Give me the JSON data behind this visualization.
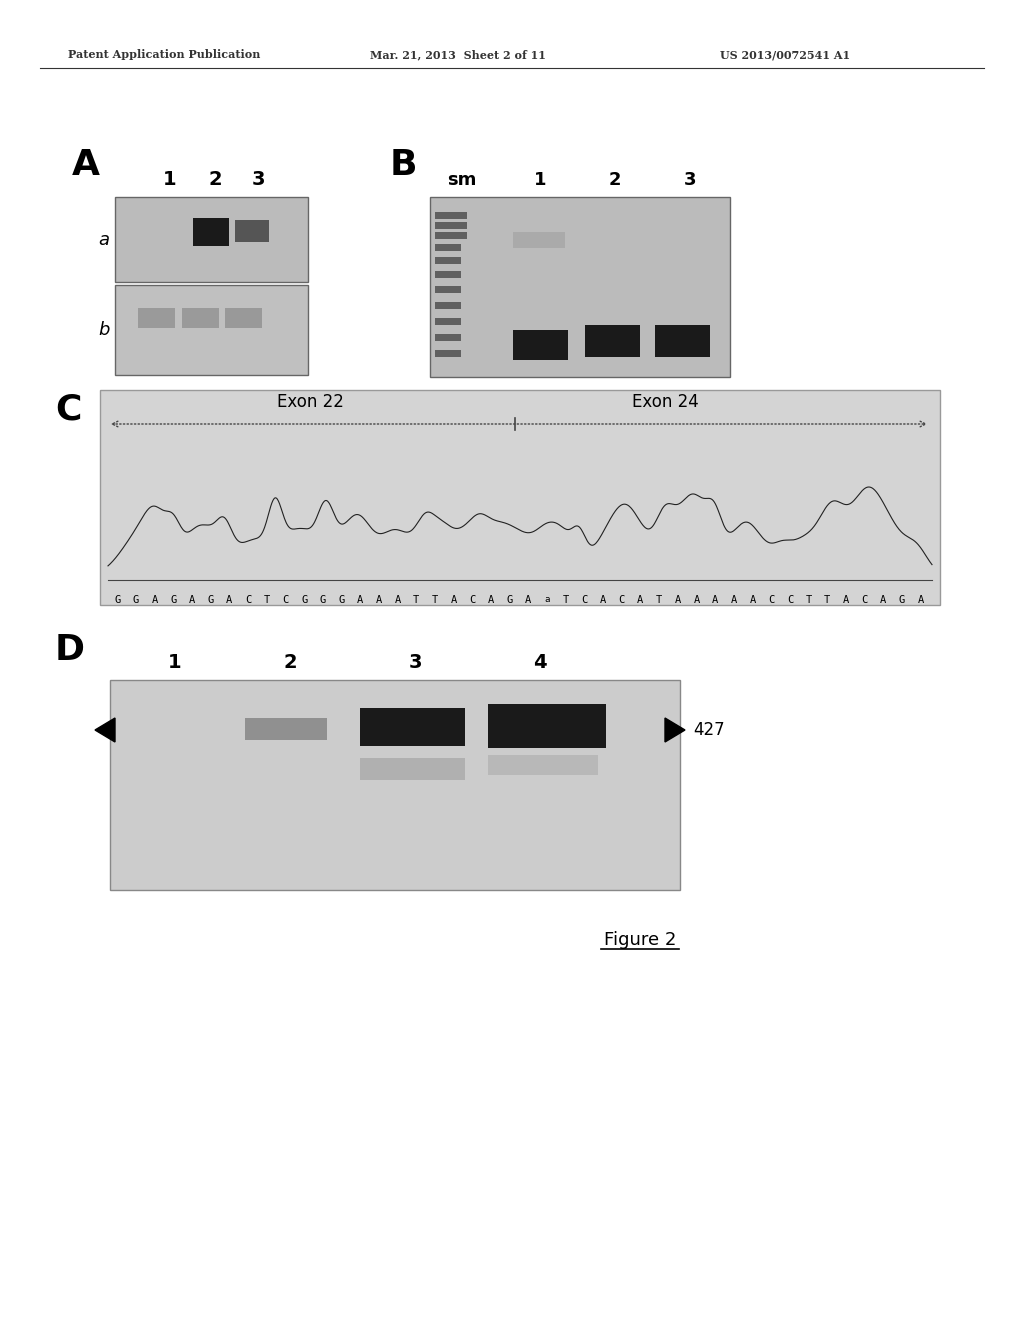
{
  "header_left": "Patent Application Publication",
  "header_mid": "Mar. 21, 2013  Sheet 2 of 11",
  "header_right": "US 2013/0072541 A1",
  "figure_label": "Figure 2",
  "panel_A_label": "A",
  "panel_B_label": "B",
  "panel_C_label": "C",
  "panel_D_label": "D",
  "panel_A_lanes": [
    "1",
    "2",
    "3"
  ],
  "panel_A_rows": [
    "a",
    "b"
  ],
  "panel_B_lanes": [
    "sm",
    "1",
    "2",
    "3"
  ],
  "panel_C_exon22": "Exon 22",
  "panel_C_exon24": "Exon 24",
  "panel_C_sequence": "GGAGAGACTCGGGAAATTACAGAaTCACATAAAAACCTTACAGA",
  "panel_D_lanes": [
    "1",
    "2",
    "3",
    "4"
  ],
  "panel_D_marker": "427",
  "bg_color": "#ffffff",
  "gel_bg": "#c8c8c8",
  "band_dark": "#1a1a1a",
  "band_medium": "#555555",
  "band_light": "#888888"
}
